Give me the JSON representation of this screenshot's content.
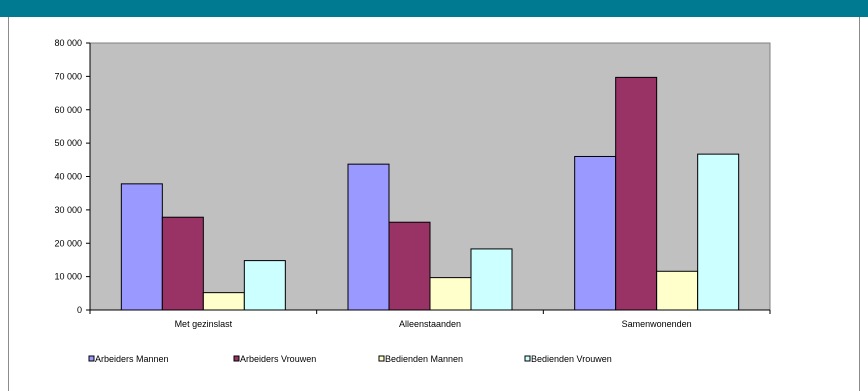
{
  "colors": {
    "header_bar": "#007a91",
    "plot_background": "#c0c0c0"
  },
  "chart_data": {
    "type": "bar",
    "title": "",
    "xlabel": "",
    "ylabel": "",
    "ylim": [
      0,
      80000
    ],
    "y_ticks": [
      0,
      10000,
      20000,
      30000,
      40000,
      50000,
      60000,
      70000,
      80000
    ],
    "y_tick_labels": [
      "0",
      "10 000",
      "20 000",
      "30 000",
      "40 000",
      "50 000",
      "60 000",
      "70 000",
      "80 000"
    ],
    "grid": false,
    "legend_position": "bottom",
    "categories": [
      "Met gezinslast",
      "Alleenstaanden",
      "Samenwonenden"
    ],
    "series": [
      {
        "name": "Arbeiders Mannen",
        "color": "#9999ff",
        "values": [
          37800,
          43700,
          46000
        ]
      },
      {
        "name": "Arbeiders Vrouwen",
        "color": "#993366",
        "values": [
          27800,
          26300,
          69700
        ]
      },
      {
        "name": "Bedienden Mannen",
        "color": "#ffffcc",
        "values": [
          5200,
          9700,
          11600
        ]
      },
      {
        "name": "Bedienden Vrouwen",
        "color": "#ccffff",
        "values": [
          14800,
          18300,
          46700
        ]
      }
    ]
  }
}
